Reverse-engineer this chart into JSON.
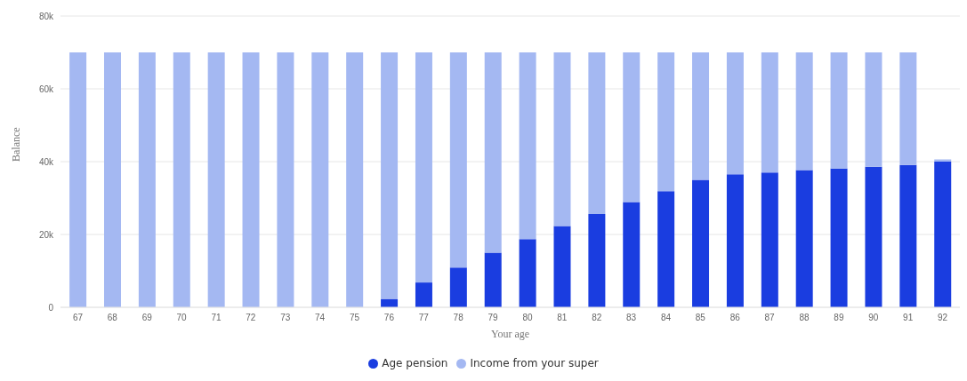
{
  "chart_data": {
    "type": "bar",
    "stacked": true,
    "xlabel": "Your age",
    "ylabel": "Balance",
    "categories": [
      "67",
      "68",
      "69",
      "70",
      "71",
      "72",
      "73",
      "74",
      "75",
      "76",
      "77",
      "78",
      "79",
      "80",
      "81",
      "82",
      "83",
      "84",
      "85",
      "86",
      "87",
      "88",
      "89",
      "90",
      "91",
      "92"
    ],
    "series": [
      {
        "name": "Age pension",
        "color": "#1a3de0",
        "values": [
          0,
          0,
          0,
          0,
          0,
          0,
          0,
          0,
          0,
          2300,
          6800,
          10900,
          15000,
          18700,
          22300,
          25600,
          28900,
          31900,
          35000,
          36500,
          37000,
          37700,
          38100,
          38600,
          39100,
          40000
        ]
      },
      {
        "name": "Income from your super",
        "color": "#a4b8f2",
        "values": [
          70000,
          70000,
          70000,
          70000,
          70000,
          70000,
          70000,
          70000,
          70000,
          67700,
          63200,
          59100,
          55000,
          51300,
          47700,
          44400,
          41100,
          38100,
          35000,
          33500,
          33000,
          32300,
          31900,
          31400,
          30900,
          600
        ]
      }
    ],
    "ylim": [
      0,
      80000
    ],
    "yticks": [
      {
        "value": 0,
        "label": "0"
      },
      {
        "value": 20000,
        "label": "20k"
      },
      {
        "value": 40000,
        "label": "40k"
      },
      {
        "value": 60000,
        "label": "60k"
      },
      {
        "value": 80000,
        "label": "80k"
      }
    ],
    "grid": "y",
    "legend": "bottom"
  }
}
